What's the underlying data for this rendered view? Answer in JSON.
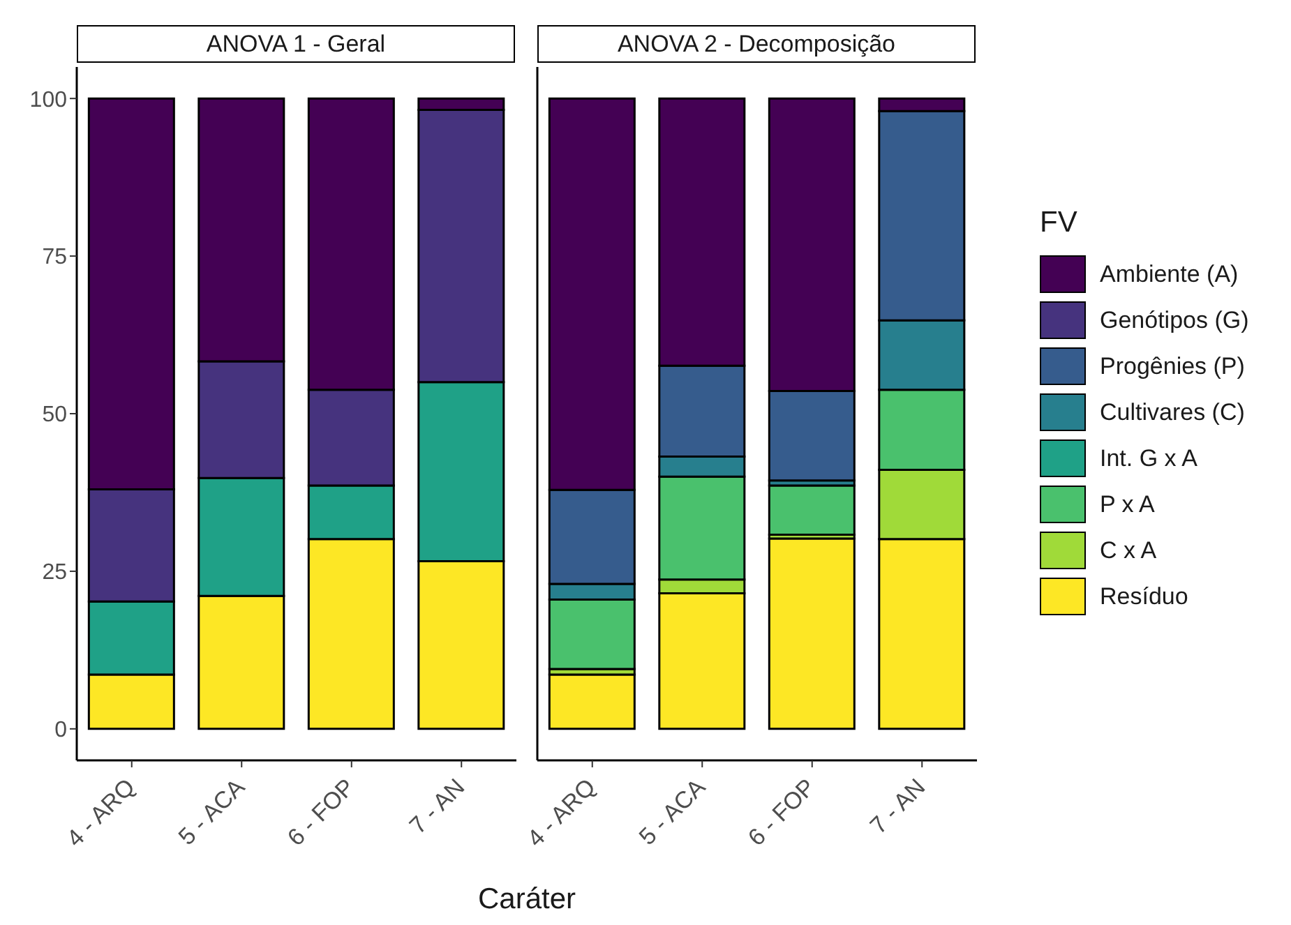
{
  "chart_data": [
    {
      "type": "bar",
      "title": "ANOVA 1 - Geral",
      "xlabel": "Caráter",
      "ylim": [
        -5,
        105
      ],
      "yticks": [
        0,
        25,
        50,
        75,
        100
      ],
      "stacked": true,
      "legend": "right",
      "categories": [
        "4 - ARQ",
        "5 - ACA",
        "6 - FOP",
        "7 - AN"
      ],
      "series": [
        {
          "name": "Resíduo",
          "color": "#fde725",
          "values": [
            8.6,
            21.1,
            30.1,
            26.6
          ]
        },
        {
          "name": "Int. G x A",
          "color": "#1fa187",
          "values": [
            11.6,
            18.7,
            8.5,
            28.4
          ]
        },
        {
          "name": "Genótipos (G)",
          "color": "#46337e",
          "values": [
            17.8,
            18.5,
            15.2,
            43.2
          ]
        },
        {
          "name": "Ambiente (A)",
          "color": "#440154",
          "values": [
            62,
            41.7,
            46.2,
            1.8
          ]
        }
      ]
    },
    {
      "type": "bar",
      "title": "ANOVA 2 - Decomposição",
      "ylim": [
        -5,
        105
      ],
      "yticks": [
        0,
        25,
        50,
        75,
        100
      ],
      "tick_labels": "x",
      "stacked": true,
      "legend": "right",
      "legend_title": "FV",
      "categories": [
        "4 - ARQ",
        "5 - ACA",
        "6 - FOP",
        "7 - AN"
      ],
      "series": [
        {
          "color": "#fde725",
          "values": [
            8.6,
            21.5,
            30.2,
            30.1
          ]
        },
        {
          "name": "C x A",
          "color": "#a0da39",
          "values": [
            0.9,
            2.2,
            0.6,
            11.0
          ]
        },
        {
          "name": "P x A",
          "color": "#4ac16d",
          "values": [
            11.0,
            16.3,
            7.8,
            12.7
          ]
        },
        {
          "color": "#1fa187",
          "values": [
            null,
            null,
            null,
            null
          ]
        },
        {
          "name": "Cultivares (C)",
          "color": "#277f8e",
          "values": [
            2.5,
            3.2,
            0.8,
            11.0
          ]
        },
        {
          "name": "Progênies (P)",
          "color": "#365c8d",
          "values": [
            14.9,
            14.4,
            14.2,
            33.2
          ]
        },
        {
          "color": "#46337e",
          "values": [
            null,
            null,
            null,
            null
          ]
        },
        {
          "color": "#440154",
          "values": [
            62.1,
            42.4,
            46.4,
            2.0
          ]
        }
      ]
    }
  ]
}
